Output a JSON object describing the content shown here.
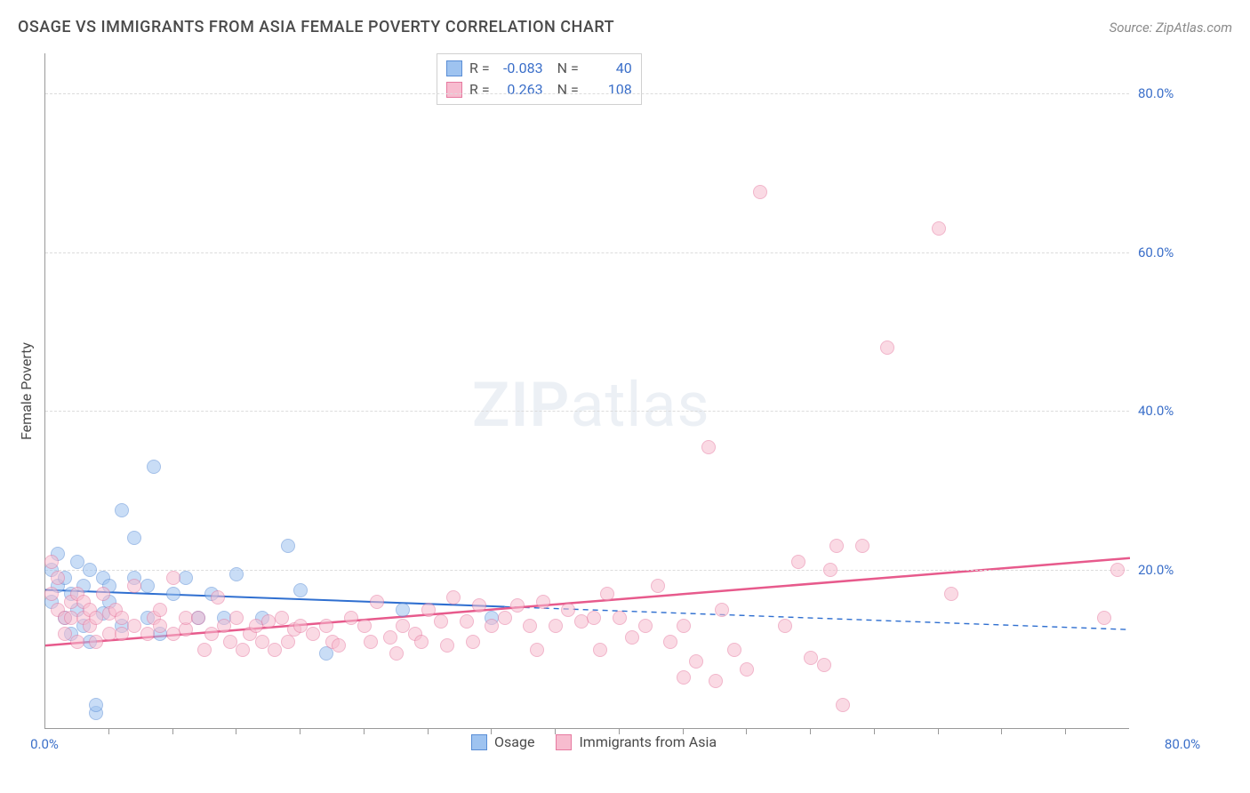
{
  "header": {
    "title": "OSAGE VS IMMIGRANTS FROM ASIA FEMALE POVERTY CORRELATION CHART",
    "source_label": "Source:",
    "source_name": "ZipAtlas.com"
  },
  "chart": {
    "type": "scatter",
    "background_color": "#ffffff",
    "grid_color": "#dcdcdc",
    "axis_color": "#999999",
    "tick_label_color": "#3b6fc9",
    "tick_fontsize": 15,
    "y_axis_title": "Female Poverty",
    "axis_title_fontsize": 16,
    "axis_title_color": "#4a4a4a",
    "xlim": [
      0,
      85
    ],
    "ylim": [
      0,
      85
    ],
    "y_ticks": [
      20,
      40,
      60,
      80
    ],
    "y_tick_labels": [
      "20.0%",
      "40.0%",
      "60.0%",
      "80.0%"
    ],
    "x_tick_origin": "0.0%",
    "x_tick_max": "80.0%",
    "x_minor_ticks": [
      5,
      10,
      15,
      20,
      25,
      30,
      35,
      40,
      45,
      50,
      55,
      60,
      65,
      70,
      75,
      80
    ],
    "marker_radius": 8,
    "marker_opacity": 0.55,
    "watermark": {
      "text_bold": "ZIP",
      "text_light": "atlas"
    },
    "series": [
      {
        "id": "osage",
        "name": "Osage",
        "color_fill": "#9ec3f0",
        "color_stroke": "#5a8ed6",
        "R": "-0.083",
        "N": "40",
        "trend": {
          "x1": 0,
          "y1": 17.5,
          "x2": 85,
          "y2": 12.5,
          "solid_until_x": 36,
          "color": "#2f6fd0",
          "width": 2
        },
        "points": [
          [
            0.5,
            20
          ],
          [
            0.5,
            16
          ],
          [
            1,
            22
          ],
          [
            1,
            18
          ],
          [
            1.5,
            14
          ],
          [
            1.5,
            19
          ],
          [
            2,
            17
          ],
          [
            2,
            12
          ],
          [
            2.5,
            21
          ],
          [
            2.5,
            15
          ],
          [
            3,
            18
          ],
          [
            3,
            13
          ],
          [
            3.5,
            20
          ],
          [
            3.5,
            11
          ],
          [
            4,
            2
          ],
          [
            4,
            3
          ],
          [
            4.5,
            19
          ],
          [
            4.5,
            14.5
          ],
          [
            5,
            16
          ],
          [
            5,
            18
          ],
          [
            6,
            27.5
          ],
          [
            6,
            13
          ],
          [
            7,
            19
          ],
          [
            7,
            24
          ],
          [
            8,
            18
          ],
          [
            8,
            14
          ],
          [
            8.5,
            33
          ],
          [
            9,
            12
          ],
          [
            10,
            17
          ],
          [
            11,
            19
          ],
          [
            12,
            14
          ],
          [
            13,
            17
          ],
          [
            14,
            14
          ],
          [
            15,
            19.5
          ],
          [
            17,
            14
          ],
          [
            19,
            23
          ],
          [
            20,
            17.5
          ],
          [
            22,
            9.5
          ],
          [
            28,
            15
          ],
          [
            35,
            14
          ]
        ]
      },
      {
        "id": "asia",
        "name": "Immigrants from Asia",
        "color_fill": "#f7bccf",
        "color_stroke": "#e67aa0",
        "R": "0.263",
        "N": "108",
        "trend": {
          "x1": 0,
          "y1": 10.5,
          "x2": 85,
          "y2": 21.5,
          "solid_until_x": 85,
          "color": "#e75a8c",
          "width": 2.5
        },
        "points": [
          [
            0.5,
            21
          ],
          [
            0.5,
            17
          ],
          [
            1,
            15
          ],
          [
            1,
            19
          ],
          [
            1.5,
            14
          ],
          [
            1.5,
            12
          ],
          [
            2,
            16
          ],
          [
            2,
            14
          ],
          [
            2.5,
            17
          ],
          [
            2.5,
            11
          ],
          [
            3,
            14
          ],
          [
            3,
            16
          ],
          [
            3.5,
            13
          ],
          [
            3.5,
            15
          ],
          [
            4,
            14
          ],
          [
            4,
            11
          ],
          [
            4.5,
            17
          ],
          [
            5,
            14.5
          ],
          [
            5,
            12
          ],
          [
            5.5,
            15
          ],
          [
            6,
            12
          ],
          [
            6,
            14
          ],
          [
            7,
            18
          ],
          [
            7,
            13
          ],
          [
            8,
            12
          ],
          [
            8.5,
            14
          ],
          [
            9,
            13
          ],
          [
            9,
            15
          ],
          [
            10,
            12
          ],
          [
            10,
            19
          ],
          [
            11,
            12.5
          ],
          [
            11,
            14
          ],
          [
            12,
            14
          ],
          [
            12.5,
            10
          ],
          [
            13,
            12
          ],
          [
            13.5,
            16.5
          ],
          [
            14,
            13
          ],
          [
            14.5,
            11
          ],
          [
            15,
            14
          ],
          [
            15.5,
            10
          ],
          [
            16,
            12
          ],
          [
            16.5,
            13
          ],
          [
            17,
            11
          ],
          [
            17.5,
            13.5
          ],
          [
            18,
            10
          ],
          [
            18.5,
            14
          ],
          [
            19,
            11
          ],
          [
            19.5,
            12.5
          ],
          [
            20,
            13
          ],
          [
            21,
            12
          ],
          [
            22,
            13
          ],
          [
            22.5,
            11
          ],
          [
            23,
            10.5
          ],
          [
            24,
            14
          ],
          [
            25,
            13
          ],
          [
            25.5,
            11
          ],
          [
            26,
            16
          ],
          [
            27,
            11.5
          ],
          [
            27.5,
            9.5
          ],
          [
            28,
            13
          ],
          [
            29,
            12
          ],
          [
            29.5,
            11
          ],
          [
            30,
            15
          ],
          [
            31,
            13.5
          ],
          [
            31.5,
            10.5
          ],
          [
            32,
            16.5
          ],
          [
            33,
            13.5
          ],
          [
            33.5,
            11
          ],
          [
            34,
            15.5
          ],
          [
            35,
            13
          ],
          [
            36,
            14
          ],
          [
            37,
            15.5
          ],
          [
            38,
            13
          ],
          [
            38.5,
            10
          ],
          [
            39,
            16
          ],
          [
            40,
            13
          ],
          [
            41,
            15
          ],
          [
            42,
            13.5
          ],
          [
            43,
            14
          ],
          [
            43.5,
            10
          ],
          [
            44,
            17
          ],
          [
            45,
            14
          ],
          [
            46,
            11.5
          ],
          [
            47,
            13
          ],
          [
            48,
            18
          ],
          [
            49,
            11
          ],
          [
            50,
            6.5
          ],
          [
            50,
            13
          ],
          [
            51,
            8.5
          ],
          [
            52.5,
            6
          ],
          [
            52,
            35.5
          ],
          [
            53,
            15
          ],
          [
            54,
            10
          ],
          [
            55,
            7.5
          ],
          [
            56,
            67.5
          ],
          [
            58,
            13
          ],
          [
            59,
            21
          ],
          [
            60,
            9
          ],
          [
            61,
            8
          ],
          [
            61.5,
            20
          ],
          [
            62,
            23
          ],
          [
            62.5,
            3
          ],
          [
            64,
            23
          ],
          [
            66,
            48
          ],
          [
            70,
            63
          ],
          [
            71,
            17
          ],
          [
            83,
            14
          ],
          [
            84,
            20
          ]
        ]
      }
    ],
    "stat_legend": {
      "R_label": "R =",
      "N_label": "N ="
    },
    "bottom_legend_fontsize": 16
  }
}
